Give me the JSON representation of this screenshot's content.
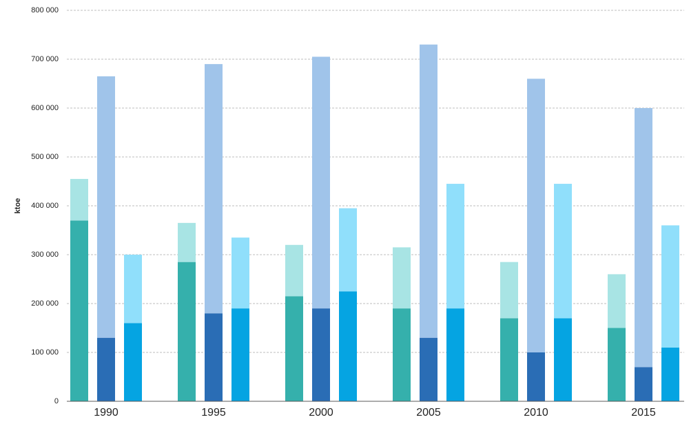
{
  "chart_data": {
    "type": "grouped_stacked_bar",
    "y_label": "ktoe",
    "categories": [
      "1990",
      "1995",
      "2000",
      "2005",
      "2010",
      "2015"
    ],
    "stacks": [
      {
        "series": [
          {
            "color": "#35b0ac",
            "values": [
              370000,
              285000,
              215000,
              190000,
              170000,
              150000
            ]
          },
          {
            "color": "#a8e4e4",
            "values": [
              85000,
              80000,
              105000,
              125000,
              115000,
              110000
            ]
          }
        ]
      },
      {
        "series": [
          {
            "color": "#2a6db5",
            "values": [
              130000,
              180000,
              190000,
              130000,
              100000,
              70000
            ]
          },
          {
            "color": "#a0c4ea",
            "values": [
              535000,
              510000,
              515000,
              600000,
              560000,
              530000
            ]
          }
        ]
      },
      {
        "series": [
          {
            "color": "#05a4e2",
            "values": [
              160000,
              190000,
              225000,
              190000,
              170000,
              110000
            ]
          },
          {
            "color": "#90dffb",
            "values": [
              140000,
              145000,
              170000,
              255000,
              275000,
              250000
            ]
          }
        ]
      }
    ],
    "ylim": [
      0,
      800000
    ],
    "yticks": [
      0,
      {
        "value": 100000,
        "label": "100 000"
      },
      {
        "value": 200000,
        "label": "200 000"
      },
      {
        "value": 300000,
        "label": "300 000"
      },
      {
        "value": 400000,
        "label": "400 000"
      },
      {
        "value": 500000,
        "label": "500 000"
      },
      {
        "value": 600000,
        "label": "600 000"
      },
      {
        "value": 700000,
        "label": "700 000"
      },
      {
        "value": 800000,
        "label": "800 000"
      }
    ],
    "grid": true
  }
}
